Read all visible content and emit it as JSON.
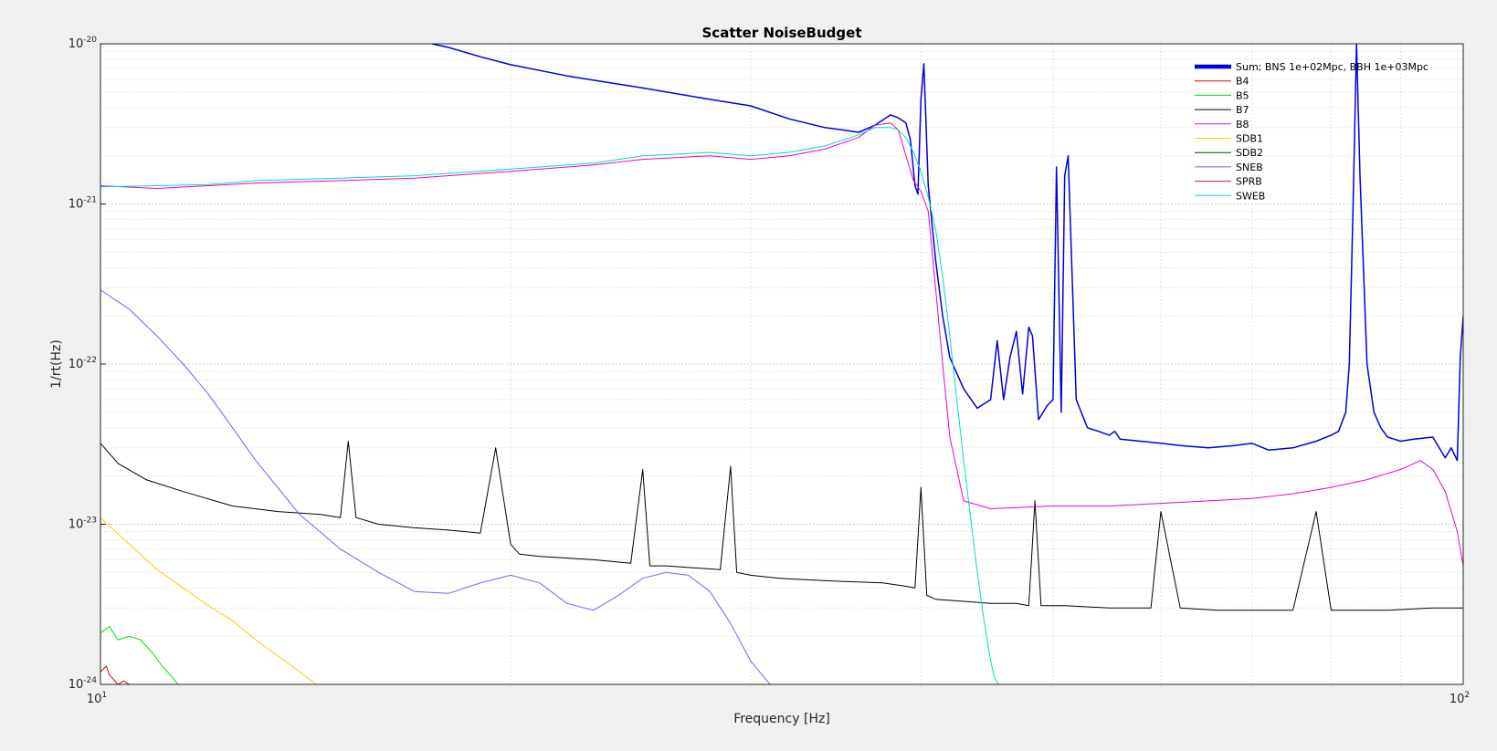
{
  "chart_data": {
    "type": "line",
    "title": "Scatter NoiseBudget",
    "xlabel": "Frequency [Hz]",
    "ylabel": "1/rt(Hz)",
    "xscale": "log",
    "yscale": "log",
    "xlim": [
      10,
      100
    ],
    "ylim": [
      1e-24,
      1e-20
    ],
    "grid": true,
    "legend_position": "top-right",
    "x_ticks": [
      {
        "value": 10,
        "base": "10",
        "exp": "1"
      },
      {
        "value": 100,
        "base": "10",
        "exp": "2"
      }
    ],
    "y_ticks": [
      {
        "value": 1e-20,
        "base": "10",
        "exp": "-20"
      },
      {
        "value": 1e-21,
        "base": "10",
        "exp": "-21"
      },
      {
        "value": 1e-22,
        "base": "10",
        "exp": "-22"
      },
      {
        "value": 1e-23,
        "base": "10",
        "exp": "-23"
      },
      {
        "value": 1e-24,
        "base": "10",
        "exp": "-24"
      }
    ],
    "series": [
      {
        "name": "Sum; BNS 1e+02Mpc, BBH 1e+03Mpc",
        "color": "#0000dd",
        "width": 4.5,
        "thick": true,
        "x": [
          17.5,
          18,
          19,
          20,
          22,
          25,
          28,
          30,
          32,
          34,
          35,
          36,
          37,
          38,
          38.5,
          39,
          39.3,
          39.6,
          39.8,
          40,
          40.2,
          40.5,
          41,
          41.5,
          42,
          43,
          44,
          45,
          45.5,
          46,
          46.5,
          47,
          47.5,
          48,
          48.3,
          48.8,
          49.5,
          50,
          50.3,
          50.7,
          51,
          51.3,
          52,
          53,
          54,
          55,
          55.5,
          56,
          58,
          60,
          62,
          65,
          68,
          70,
          72,
          75,
          78,
          80,
          81,
          82,
          82.5,
          83,
          83.5,
          84,
          85,
          86,
          87,
          88,
          90,
          92,
          95,
          97,
          98,
          99,
          99.5,
          100
        ],
        "y": [
          1e-20,
          9.5e-21,
          8.3e-21,
          7.4e-21,
          6.3e-21,
          5.3e-21,
          4.5e-21,
          4.1e-21,
          3.4e-21,
          3e-21,
          2.9e-21,
          2.8e-21,
          3.1e-21,
          3.6e-21,
          3.45e-21,
          3.2e-21,
          2.5e-21,
          1.3e-21,
          1.15e-21,
          4.5e-21,
          7.5e-21,
          1.3e-21,
          4.5e-22,
          2e-22,
          1.1e-22,
          7e-23,
          5.3e-23,
          6e-23,
          1.4e-22,
          6e-23,
          1.1e-22,
          1.6e-22,
          6.5e-23,
          1.7e-22,
          1.5e-22,
          4.5e-23,
          5.5e-23,
          6e-23,
          1.7e-21,
          5e-23,
          1.5e-21,
          2e-21,
          6e-23,
          4e-23,
          3.8e-23,
          3.6e-23,
          3.8e-23,
          3.4e-23,
          3.3e-23,
          3.2e-23,
          3.1e-23,
          3e-23,
          3.1e-23,
          3.2e-23,
          2.9e-23,
          3e-23,
          3.3e-23,
          3.6e-23,
          3.8e-23,
          5e-23,
          1e-22,
          9e-22,
          1e-20,
          1.5e-21,
          1e-22,
          5e-23,
          4e-23,
          3.5e-23,
          3.3e-23,
          3.4e-23,
          3.5e-23,
          2.6e-23,
          3e-23,
          2.5e-23,
          1.1e-22,
          2e-22
        ]
      },
      {
        "name": "B4",
        "color": "#dd0000",
        "width": 1,
        "x": [
          10,
          10.1,
          10.15,
          10.3,
          10.4,
          10.5
        ],
        "y": [
          1.2e-24,
          1.3e-24,
          1.15e-24,
          1e-24,
          1.05e-24,
          1e-24
        ]
      },
      {
        "name": "B5",
        "color": "#00dd00",
        "width": 1,
        "x": [
          10,
          10.15,
          10.3,
          10.5,
          10.7,
          10.9,
          11.1,
          11.3,
          11.4
        ],
        "y": [
          2.1e-24,
          2.3e-24,
          1.9e-24,
          2e-24,
          1.9e-24,
          1.6e-24,
          1.3e-24,
          1.1e-24,
          1e-24
        ]
      },
      {
        "name": "B7",
        "color": "#000000",
        "width": 1,
        "x": [
          10,
          10.3,
          10.8,
          11.5,
          12.5,
          13.5,
          14.5,
          15,
          15.2,
          15.4,
          16,
          17,
          18,
          19,
          19.5,
          20,
          20.3,
          21,
          23,
          24.5,
          25,
          25.3,
          26,
          28.5,
          29,
          29.3,
          30,
          31.5,
          33,
          35,
          37.5,
          39,
          39.6,
          40,
          40.4,
          41,
          43,
          45,
          47,
          48,
          48.5,
          49,
          51,
          55,
          59,
          60,
          62,
          66,
          70,
          75,
          78,
          80,
          82,
          84,
          88,
          95,
          100
        ],
        "y": [
          3.2e-23,
          2.4e-23,
          1.9e-23,
          1.6e-23,
          1.3e-23,
          1.2e-23,
          1.15e-23,
          1.1e-23,
          3.3e-23,
          1.1e-23,
          1e-23,
          9.5e-24,
          9.2e-24,
          8.8e-24,
          3e-23,
          7.5e-24,
          6.5e-24,
          6.3e-24,
          6e-24,
          5.7e-24,
          2.2e-23,
          5.5e-24,
          5.5e-24,
          5.2e-24,
          2.3e-23,
          5e-24,
          4.8e-24,
          4.6e-24,
          4.5e-24,
          4.4e-24,
          4.3e-24,
          4.1e-24,
          4e-24,
          1.7e-23,
          3.6e-24,
          3.4e-24,
          3.3e-24,
          3.2e-24,
          3.2e-24,
          3.1e-24,
          1.4e-23,
          3.1e-24,
          3.1e-24,
          3e-24,
          3e-24,
          1.2e-23,
          3e-24,
          2.9e-24,
          2.9e-24,
          2.9e-24,
          1.2e-23,
          2.9e-24,
          2.9e-24,
          2.9e-24,
          2.9e-24,
          3e-24,
          3e-24
        ]
      },
      {
        "name": "B8",
        "color": "#ee00cc",
        "width": 1,
        "x": [
          10,
          11,
          12,
          13,
          15,
          17,
          20,
          23,
          25,
          28,
          30,
          32,
          34,
          36,
          37,
          38,
          38.5,
          39,
          39.5,
          40,
          40.5,
          41,
          41.5,
          42,
          43,
          45,
          50,
          55,
          60,
          65,
          70,
          75,
          80,
          85,
          90,
          93,
          95,
          97,
          99,
          100
        ],
        "y": [
          1.3e-21,
          1.25e-21,
          1.3e-21,
          1.35e-21,
          1.4e-21,
          1.45e-21,
          1.6e-21,
          1.75e-21,
          1.9e-21,
          2e-21,
          1.9e-21,
          2e-21,
          2.2e-21,
          2.6e-21,
          3.1e-21,
          3.2e-21,
          2.9e-21,
          2e-21,
          1.4e-21,
          1.2e-21,
          9e-22,
          3e-22,
          1e-22,
          3.5e-23,
          1.4e-23,
          1.25e-23,
          1.3e-23,
          1.3e-23,
          1.35e-23,
          1.4e-23,
          1.45e-23,
          1.55e-23,
          1.7e-23,
          1.9e-23,
          2.2e-23,
          2.5e-23,
          2.2e-23,
          1.6e-23,
          9e-24,
          5.5e-24
        ]
      },
      {
        "name": "SDB1",
        "color": "#ffcc00",
        "width": 1,
        "x": [
          10,
          10.5,
          11,
          11.5,
          12,
          12.5,
          13,
          13.5,
          14,
          14.4
        ],
        "y": [
          1.1e-23,
          7.5e-24,
          5.2e-24,
          4e-24,
          3.1e-24,
          2.5e-24,
          1.9e-24,
          1.5e-24,
          1.2e-24,
          1e-24
        ]
      },
      {
        "name": "SDB2",
        "color": "#004400",
        "width": 1,
        "x": [],
        "y": []
      },
      {
        "name": "SNEB",
        "color": "#6666ff",
        "width": 1,
        "x": [
          10,
          10.5,
          11,
          11.5,
          12,
          12.5,
          13,
          14,
          15,
          16,
          17,
          18,
          19,
          20,
          21,
          22,
          23,
          24,
          25,
          26,
          27,
          28,
          29,
          30,
          31
        ],
        "y": [
          2.9e-22,
          2.2e-22,
          1.5e-22,
          1e-22,
          6.5e-23,
          4e-23,
          2.5e-23,
          1.15e-23,
          7e-24,
          5e-24,
          3.8e-24,
          3.7e-24,
          4.3e-24,
          4.8e-24,
          4.3e-24,
          3.2e-24,
          2.9e-24,
          3.6e-24,
          4.6e-24,
          5e-24,
          4.8e-24,
          3.8e-24,
          2.4e-24,
          1.4e-24,
          1e-24
        ]
      },
      {
        "name": "SPRB",
        "color": "#cc2222",
        "width": 1,
        "x": [],
        "y": []
      },
      {
        "name": "SWEB",
        "color": "#00ddbb",
        "width": 1,
        "x": [
          10,
          11,
          12,
          13,
          15,
          17,
          20,
          23,
          25,
          28,
          30,
          32,
          34,
          36,
          37,
          38,
          38.5,
          39,
          39.5,
          40,
          40.5,
          41,
          41.5,
          42,
          42.5,
          43,
          43.5,
          44,
          44.5,
          45,
          45.3,
          45.6
        ],
        "y": [
          1.28e-21,
          1.3e-21,
          1.32e-21,
          1.4e-21,
          1.45e-21,
          1.5e-21,
          1.65e-21,
          1.8e-21,
          2e-21,
          2.1e-21,
          2e-21,
          2.1e-21,
          2.3e-21,
          2.7e-21,
          3e-21,
          3e-21,
          2.9e-21,
          2.6e-21,
          2.1e-21,
          1.6e-21,
          1.1e-21,
          7e-22,
          3.5e-22,
          1.5e-22,
          6e-23,
          2.5e-23,
          1.1e-23,
          5e-24,
          2.5e-24,
          1.4e-24,
          1.1e-24,
          1e-24
        ]
      }
    ]
  }
}
